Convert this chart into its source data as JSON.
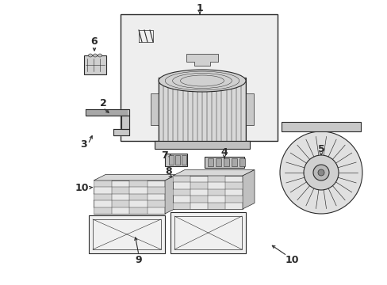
{
  "background_color": "#ffffff",
  "line_color": "#2a2a2a",
  "parts_color": "#cccccc",
  "shading_color": "#e8e8e8",
  "box_bg": "#eeeeee"
}
